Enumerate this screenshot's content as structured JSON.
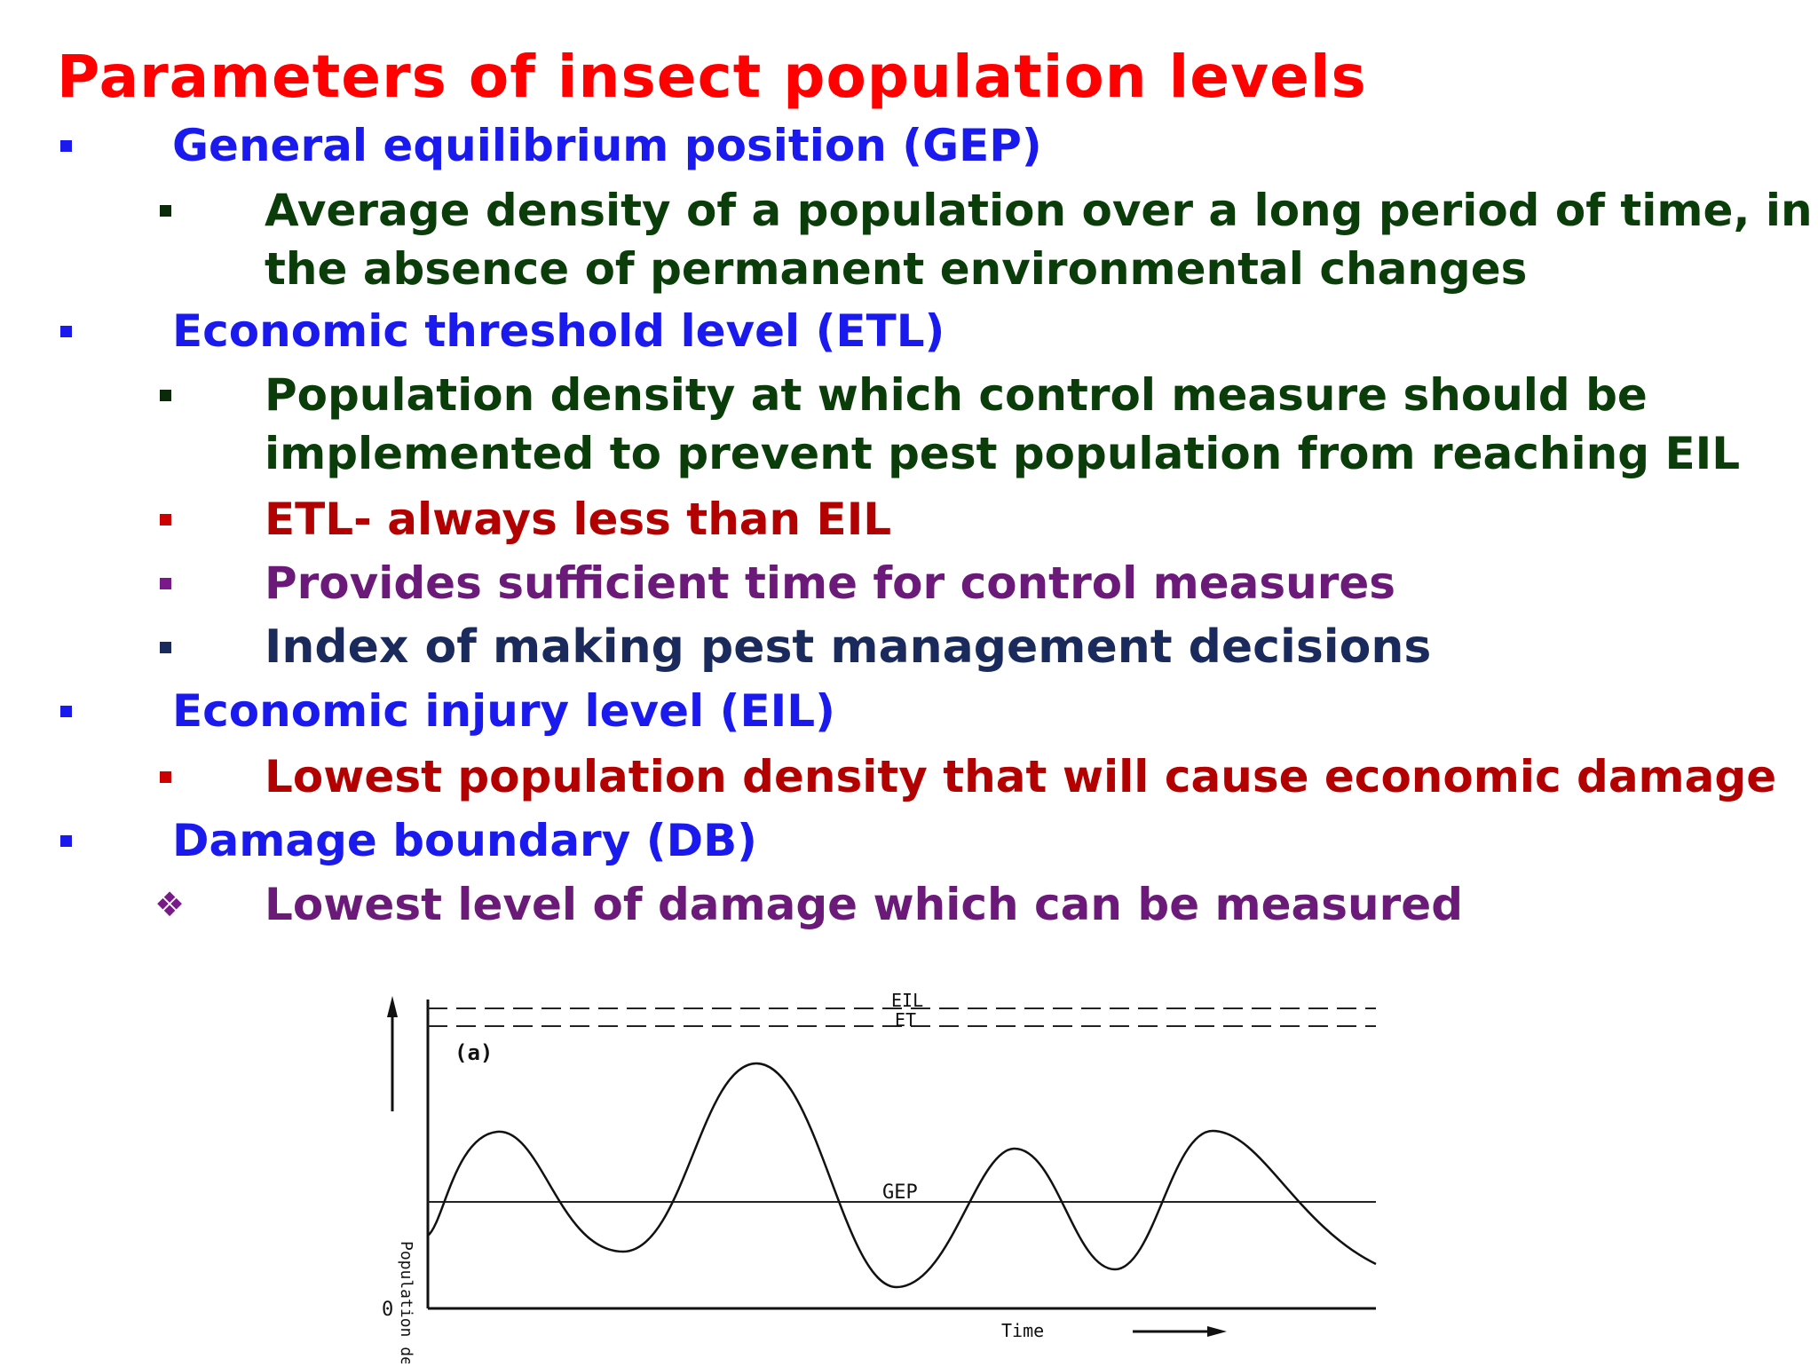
{
  "title": "Parameters of insect population levels",
  "colors": {
    "title": "#ff0000",
    "heading": "#1a1aee",
    "definition": "#0a3d0a",
    "highlight": "#b30000",
    "purple": "#6b1a7a",
    "navy": "#1a2a5c",
    "bullet_blue": "#1a1aee",
    "bullet_dark": "#0a2a0a",
    "bullet_red": "#cc0000",
    "bullet_purple": "#7a1a8a"
  },
  "items": {
    "gep_heading": "General equilibrium position (GEP)",
    "gep_def_1": "Average density of a population over a long period of time, in",
    "gep_def_2": "the absence of permanent environmental changes",
    "etl_heading": "Economic threshold level (ETL)",
    "etl_def_1": "Population density at which control measure should be",
    "etl_def_2": "implemented to prevent pest population from reaching  EIL",
    "etl_note": "ETL- always less than EIL",
    "etl_time": "Provides sufficient time for control measures",
    "etl_index": "Index of making pest management decisions",
    "eil_heading": "Economic injury level (EIL)",
    "eil_def": "Lowest population density that will cause economic damage",
    "db_heading": "Damage boundary (DB)",
    "db_def": "Lowest level of damage which can be measured"
  },
  "figure": {
    "panel_label": "(a)",
    "eil_label": "EIL",
    "et_label": "ET",
    "gep_label": "GEP",
    "y_axis_label": "Population density",
    "x_axis_label": "Time",
    "origin_label": "0"
  }
}
